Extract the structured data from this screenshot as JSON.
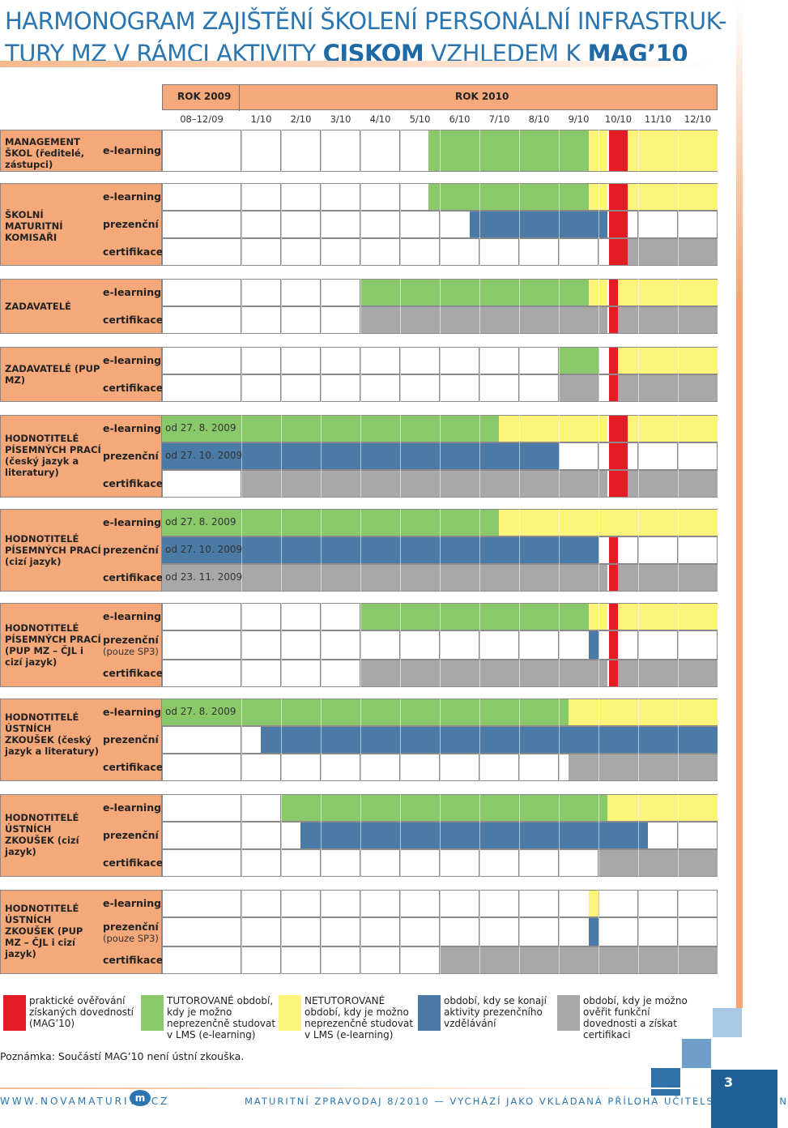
{
  "title": {
    "line1": "HARMONOGRAM ZAJIŠTĚNÍ ŠKOLENÍ PERSONÁLNÍ INFRASTRUK-",
    "line2_a": "TURY MZ V RÁMCI AKTIVITY ",
    "line2_b": "CISKOM",
    "line2_c": " VZHLEDEM K ",
    "line2_d": "MAG’10"
  },
  "years": {
    "y2009": "ROK 2009",
    "y2010": "ROK 2010"
  },
  "columns": [
    "08–12/09",
    "1/10",
    "2/10",
    "3/10",
    "4/10",
    "5/10",
    "6/10",
    "7/10",
    "8/10",
    "9/10",
    "10/10",
    "11/10",
    "12/10"
  ],
  "groups": [
    {
      "name": "MANAGEMENT ŠKOL (ředitelé, zástupci)",
      "rows": [
        {
          "label": "e-learning",
          "note": ""
        }
      ]
    },
    {
      "name": "ŠKOLNÍ MATURITNÍ KOMISAŘI",
      "rows": [
        {
          "label": "e-learning",
          "note": ""
        },
        {
          "label": "prezenční",
          "note": ""
        },
        {
          "label": "certifikace",
          "note": ""
        }
      ]
    },
    {
      "name": "ZADAVATELÉ",
      "rows": [
        {
          "label": "e-learning",
          "note": ""
        },
        {
          "label": "certifikace",
          "note": ""
        }
      ]
    },
    {
      "name": "ZADAVATELÉ (PUP MZ)",
      "rows": [
        {
          "label": "e-learning",
          "note": ""
        },
        {
          "label": "certifikace",
          "note": ""
        }
      ]
    },
    {
      "name": "HODNOTITELÉ PÍSEMNÝCH PRACÍ (český jazyk a literatury)",
      "rows": [
        {
          "label": "e-learning",
          "note": "od 27. 8. 2009"
        },
        {
          "label": "prezenční",
          "note": "od 27. 10. 2009"
        },
        {
          "label": "certifikace",
          "note": ""
        }
      ]
    },
    {
      "name": "HODNOTITELÉ PÍSEMNÝCH PRACÍ (cizí jazyk)",
      "rows": [
        {
          "label": "e-learning",
          "note": "od 27. 8. 2009"
        },
        {
          "label": "prezenční",
          "note": "od 27. 10. 2009"
        },
        {
          "label": "certifikace",
          "note": "od 23. 11. 2009"
        }
      ]
    },
    {
      "name": "HODNOTITELÉ PÍSEMNÝCH PRACÍ (PUP MZ – ČJL i cizí jazyk)",
      "rows": [
        {
          "label": "e-learning",
          "note": ""
        },
        {
          "label": "prezenční",
          "sub": "(pouze SP3)",
          "note": ""
        },
        {
          "label": "certifikace",
          "note": ""
        }
      ]
    },
    {
      "name": "HODNOTITELÉ ÚSTNÍCH ZKOUŠEK (český jazyk a literatury)",
      "rows": [
        {
          "label": "e-learning",
          "note": "od 27. 8. 2009"
        },
        {
          "label": "prezenční",
          "note": ""
        },
        {
          "label": "certifikace",
          "note": ""
        }
      ]
    },
    {
      "name": "HODNOTITELÉ ÚSTNÍCH ZKOUŠEK (cizí jazyk)",
      "rows": [
        {
          "label": "e-learning",
          "note": ""
        },
        {
          "label": "prezenční",
          "note": ""
        },
        {
          "label": "certifikace",
          "note": ""
        }
      ]
    },
    {
      "name": "HODNOTITELÉ ÚSTNÍCH ZKOUŠEK (PUP MZ – ČJL i cizí jazyk)",
      "rows": [
        {
          "label": "e-learning",
          "note": ""
        },
        {
          "label": "prezenční",
          "sub": "(pouze SP3)",
          "note": ""
        },
        {
          "label": "certifikace",
          "note": ""
        }
      ]
    }
  ],
  "legend": [
    {
      "color": "#e31c25",
      "text": "praktické ověřování získaných dovedností (MAG’10)"
    },
    {
      "color": "#8ac96a",
      "text": "TUTOROVANÉ období, kdy je možno neprezenčně studovat v LMS (e-learning)"
    },
    {
      "color": "#fdf47b",
      "text": "NETUTOROVANÉ období, kdy je možno neprezenčně studovat v LMS (e-learning)"
    },
    {
      "color": "#4a7aa5",
      "text": "období, kdy se konají aktivity prezenčního vzdělávání"
    },
    {
      "color": "#a8a8a8",
      "text": "období, kdy je možno ověřit funkční dovednosti a získat certifikaci"
    }
  ],
  "note": "Poznámka: Součástí MAG’10 není ústní zkouška.",
  "footer": {
    "web": "WWW.NOVAMATURITA.CZ",
    "logo": "m",
    "text": "MATURITNÍ ZPRAVODAJ 8/2010 — VYCHÁZÍ JAKO VKLÁDANÁ PŘÍLOHA UČITELSKÝCH NOVIN",
    "page": "3"
  }
}
